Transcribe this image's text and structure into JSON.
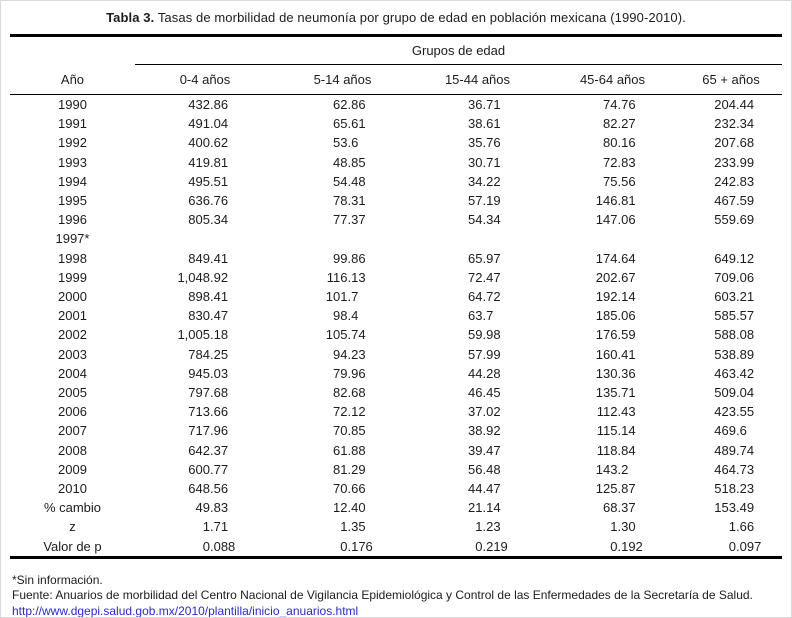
{
  "table": {
    "title_bold": "Tabla 3.",
    "title_rest": " Tasas de morbilidad de neumonía por grupo de edad en población mexicana (1990-2010).",
    "group_header": "Grupos de edad",
    "col_headers": [
      "Año",
      "0-4 años",
      "5-14 años",
      "15-44 años",
      "45-64 años",
      "65 + años"
    ],
    "rows": [
      {
        "label": "1990",
        "values": [
          "432.86",
          "62.86",
          "36.71",
          "74.76",
          "204.44"
        ]
      },
      {
        "label": "1991",
        "values": [
          "491.04",
          "65.61",
          "38.61",
          "82.27",
          "232.34"
        ]
      },
      {
        "label": "1992",
        "values": [
          "400.62",
          "53.6",
          "35.76",
          "80.16",
          "207.68"
        ]
      },
      {
        "label": "1993",
        "values": [
          "419.81",
          "48.85",
          "30.71",
          "72.83",
          "233.99"
        ]
      },
      {
        "label": "1994",
        "values": [
          "495.51",
          "54.48",
          "34.22",
          "75.56",
          "242.83"
        ]
      },
      {
        "label": "1995",
        "values": [
          "636.76",
          "78.31",
          "57.19",
          "146.81",
          "467.59"
        ]
      },
      {
        "label": "1996",
        "values": [
          "805.34",
          "77.37",
          "54.34",
          "147.06",
          "559.69"
        ]
      },
      {
        "label": "1997*",
        "values": [
          "",
          "",
          "",
          "",
          ""
        ]
      },
      {
        "label": "1998",
        "values": [
          "849.41",
          "99.86",
          "65.97",
          "174.64",
          "649.12"
        ]
      },
      {
        "label": "1999",
        "values": [
          "1,048.92",
          "116.13",
          "72.47",
          "202.67",
          "709.06"
        ]
      },
      {
        "label": "2000",
        "values": [
          "898.41",
          "101.7",
          "64.72",
          "192.14",
          "603.21"
        ]
      },
      {
        "label": "2001",
        "values": [
          "830.47",
          "98.4",
          "63.7",
          "185.06",
          "585.57"
        ]
      },
      {
        "label": "2002",
        "values": [
          "1,005.18",
          "105.74",
          "59.98",
          "176.59",
          "588.08"
        ]
      },
      {
        "label": "2003",
        "values": [
          "784.25",
          "94.23",
          "57.99",
          "160.41",
          "538.89"
        ]
      },
      {
        "label": "2004",
        "values": [
          "945.03",
          "79.96",
          "44.28",
          "130.36",
          "463.42"
        ]
      },
      {
        "label": "2005",
        "values": [
          "797.68",
          "82.68",
          "46.45",
          "135.71",
          "509.04"
        ]
      },
      {
        "label": "2006",
        "values": [
          "713.66",
          "72.12",
          "37.02",
          "112.43",
          "423.55"
        ]
      },
      {
        "label": "2007",
        "values": [
          "717.96",
          "70.85",
          "38.92",
          "115.14",
          "469.6"
        ]
      },
      {
        "label": "2008",
        "values": [
          "642.37",
          "61.88",
          "39.47",
          "118.84",
          "489.74"
        ]
      },
      {
        "label": "2009",
        "values": [
          "600.77",
          "81.29",
          "56.48",
          "143.2",
          "464.73"
        ]
      },
      {
        "label": "2010",
        "values": [
          "648.56",
          "70.66",
          "44.47",
          "125.87",
          "518.23"
        ]
      },
      {
        "label": "% cambio",
        "values": [
          "49.83",
          "12.40",
          "21.14",
          "68.37",
          "153.49"
        ]
      },
      {
        "label": "z",
        "values": [
          "1.71",
          "1.35",
          "1.23",
          "1.30",
          "1.66"
        ]
      },
      {
        "label": "Valor de p",
        "values": [
          "0.088",
          "0.176",
          "0.219",
          "0.192",
          "0.097"
        ]
      }
    ]
  },
  "footer": {
    "note": "*Sin información.",
    "source": "Fuente: Anuarios de morbilidad del Centro Nacional de Vigilancia Epidemiológica y Control de las Enfermedades de la Secretaría de Salud.",
    "link": "http://www.dgepi.salud.gob.mx/2010/plantilla/inicio_anuarios.html"
  },
  "colors": {
    "text": "#1c1c1c",
    "rule": "#000000",
    "link": "#2a2acc"
  }
}
